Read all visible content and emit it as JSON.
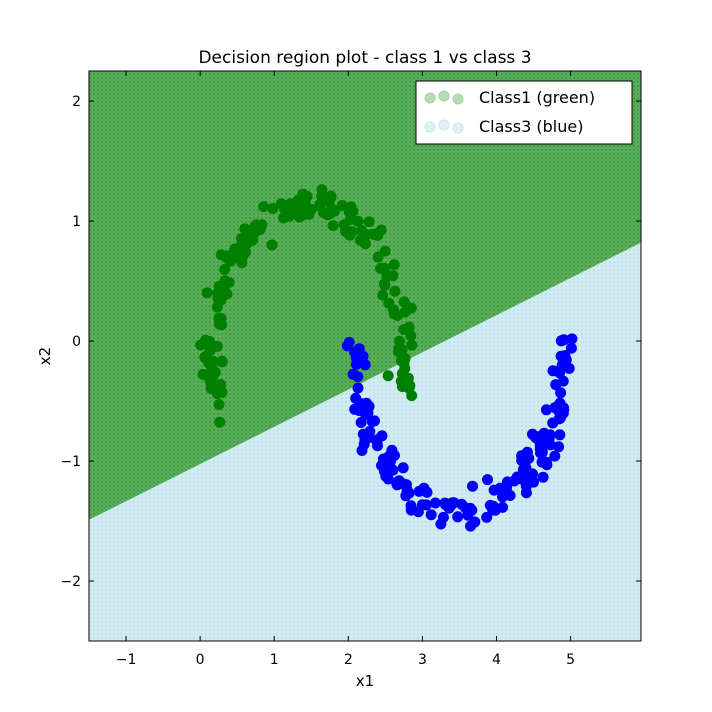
{
  "chart_data": {
    "type": "scatter",
    "title": "Decision region plot - class 1 vs class 3",
    "xlabel": "x1",
    "ylabel": "x2",
    "xlim": [
      -1.5,
      5.95
    ],
    "ylim": [
      -2.5,
      2.25
    ],
    "x_ticks": [
      -1,
      0,
      1,
      2,
      3,
      4,
      5
    ],
    "y_ticks": [
      -2,
      -1,
      0,
      1,
      2
    ],
    "x_tick_labels": [
      "−1",
      "0",
      "1",
      "2",
      "3",
      "4",
      "5"
    ],
    "y_tick_labels": [
      "−2",
      "−1",
      "0",
      "1",
      "2"
    ],
    "grid": false,
    "legend_position": "top-right",
    "decision_boundary": {
      "points": [
        [
          -1.5,
          -1.49
        ],
        [
          5.95,
          0.82
        ]
      ],
      "above_label": "Class1 (green)",
      "below_label": "Class3 (blue)"
    },
    "regions": [
      {
        "name": "Class1 (green)",
        "color": "#4ca64c",
        "side": "above"
      },
      {
        "name": "Class3 (blue)",
        "color": "#cfe9ef",
        "side": "below"
      }
    ],
    "series": [
      {
        "name": "Class1 (green)",
        "color": "#008000",
        "shape": "upper-moon",
        "center": [
          1.45,
          -0.15
        ],
        "radius": 1.3,
        "angle_range_deg": [
          -10,
          200
        ],
        "n_points": 170
      },
      {
        "name": "Class3 (blue)",
        "color": "#0000ff",
        "shape": "lower-moon",
        "center": [
          3.5,
          0.0
        ],
        "radius": 1.42,
        "angle_range_deg": [
          180,
          360
        ],
        "n_points": 170
      }
    ]
  }
}
